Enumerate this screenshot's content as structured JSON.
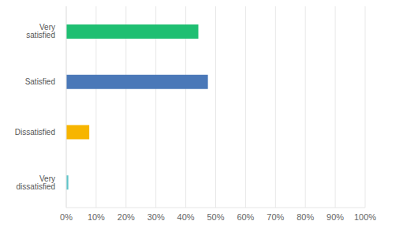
{
  "chart_data": {
    "type": "bar",
    "orientation": "horizontal",
    "categories": [
      "Very satisfied",
      "Satisfied",
      "Dissatisfied",
      "Very dissatisfied"
    ],
    "values": [
      44.2,
      47.4,
      7.7,
      0.7
    ],
    "colors": [
      "#1fbf72",
      "#4a78b8",
      "#f7b500",
      "#5ec5c9"
    ],
    "xlim": [
      0,
      100
    ],
    "xticks": [
      {
        "value": 0,
        "label": "0%"
      },
      {
        "value": 10,
        "label": "10%"
      },
      {
        "value": 20,
        "label": "20%"
      },
      {
        "value": 30,
        "label": "30%"
      },
      {
        "value": 40,
        "label": "40%"
      },
      {
        "value": 50,
        "label": "50%"
      },
      {
        "value": 60,
        "label": "60%"
      },
      {
        "value": 70,
        "label": "70%"
      },
      {
        "value": 80,
        "label": "80%"
      },
      {
        "value": 90,
        "label": "90%"
      },
      {
        "value": 100,
        "label": "100%"
      }
    ],
    "grid": true
  }
}
